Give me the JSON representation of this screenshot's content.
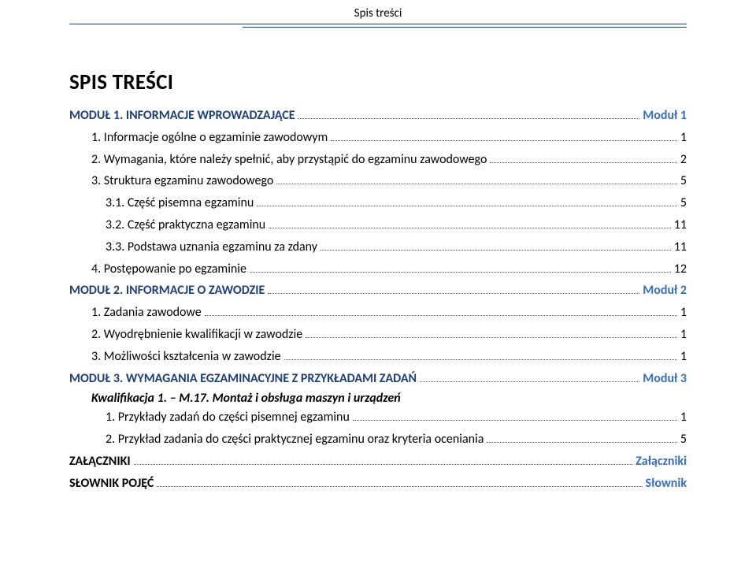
{
  "colors": {
    "heading_blue": "#1f3f77",
    "accent_blue": "#3a6fb7",
    "text": "#000000",
    "background": "#ffffff",
    "dot_leader": "#555555",
    "header_line": "#1f3f77"
  },
  "fonts": {
    "family": "Calibri",
    "title_size_pt": 20,
    "section_size_pt": 15,
    "body_size_pt": 12
  },
  "header": {
    "label": "Spis treści"
  },
  "title": "SPIS TREŚCI",
  "modules": [
    {
      "head_left": "MODUŁ 1. INFORMACJE WPROWADZAJĄCE",
      "head_right": "Moduł 1",
      "rows": [
        {
          "indent": 1,
          "n": "1.",
          "t": "Informacje ogólne o egzaminie zawodowym",
          "p": "1"
        },
        {
          "indent": 1,
          "n": "2.",
          "t": "Wymagania, które należy spełnić, aby przystąpić do egzaminu zawodowego",
          "p": "2"
        },
        {
          "indent": 1,
          "n": "3.",
          "t": "Struktura egzaminu zawodowego",
          "p": "5"
        },
        {
          "indent": 2,
          "n": "3.1.",
          "t": "Część pisemna egzaminu",
          "p": "5"
        },
        {
          "indent": 2,
          "n": "3.2.",
          "t": "Część praktyczna egzaminu",
          "p": "11"
        },
        {
          "indent": 2,
          "n": "3.3.",
          "t": "Podstawa uznania egzaminu za zdany",
          "p": "11"
        },
        {
          "indent": 1,
          "n": "4.",
          "t": "Postępowanie po egzaminie",
          "p": "12"
        }
      ]
    },
    {
      "head_left": "MODUŁ 2. INFORMACJE O ZAWODZIE",
      "head_right": "Moduł 2",
      "rows": [
        {
          "indent": 1,
          "n": "1.",
          "t": "Zadania zawodowe",
          "p": "1"
        },
        {
          "indent": 1,
          "n": "2.",
          "t": "Wyodrębnienie kwalifikacji w zawodzie",
          "p": "1"
        },
        {
          "indent": 1,
          "n": "3.",
          "t": "Możliwości kształcenia w zawodzie",
          "p": "1"
        }
      ]
    },
    {
      "head_left": "MODUŁ 3. WYMAGANIA EGZAMINACYJNE Z PRZYKŁADAMI ZADAŃ",
      "head_right": "Moduł 3",
      "sub_heading": "Kwalifikacja 1. – M.17. Montaż i obsługa maszyn i urządzeń",
      "rows": [
        {
          "indent": 2,
          "n": "1.",
          "t": "Przykłady zadań do części pisemnej egzaminu",
          "p": "1"
        },
        {
          "indent": 2,
          "n": "2.",
          "t": "Przykład zadania do części praktycznej egzaminu oraz kryteria oceniania",
          "p": "5"
        }
      ]
    }
  ],
  "appendices": [
    {
      "left": "ZAŁĄCZNIKI",
      "right": "Załączniki"
    },
    {
      "left": "SŁOWNIK POJĘĆ",
      "right": "Słownik"
    }
  ]
}
